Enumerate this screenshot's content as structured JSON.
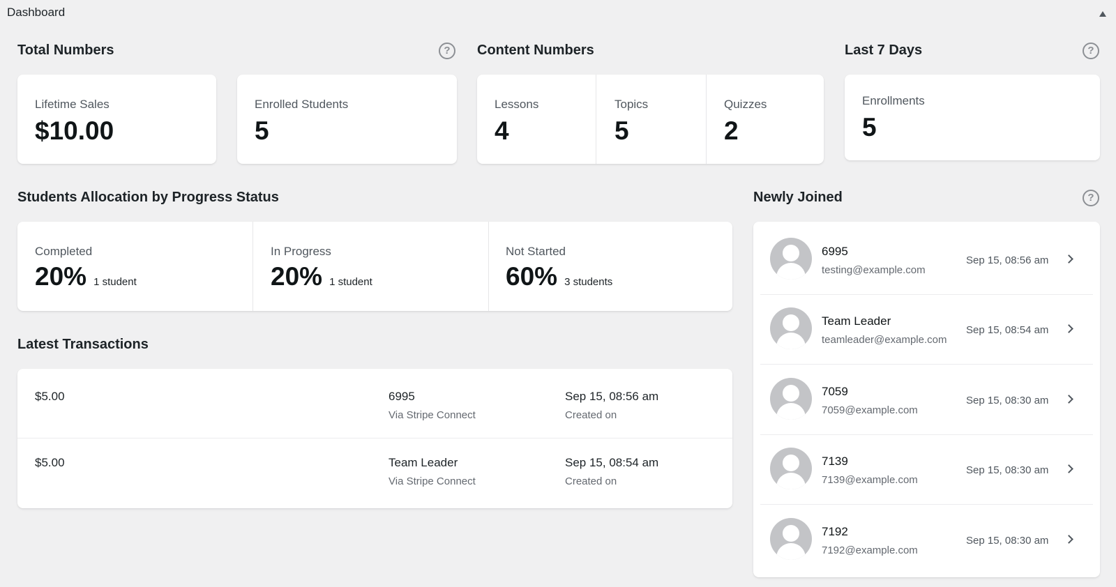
{
  "header": {
    "title": "Dashboard"
  },
  "total_numbers": {
    "title": "Total Numbers",
    "lifetime_sales": {
      "label": "Lifetime Sales",
      "value": "$10.00"
    },
    "enrolled_students": {
      "label": "Enrolled Students",
      "value": "5"
    }
  },
  "content_numbers": {
    "title": "Content Numbers",
    "lessons": {
      "label": "Lessons",
      "value": "4"
    },
    "topics": {
      "label": "Topics",
      "value": "5"
    },
    "quizzes": {
      "label": "Quizzes",
      "value": "2"
    }
  },
  "last_7_days": {
    "title": "Last 7 Days",
    "enrollments": {
      "label": "Enrollments",
      "value": "5"
    }
  },
  "progress_status": {
    "title": "Students Allocation by Progress Status",
    "items": [
      {
        "label": "Completed",
        "percent": "20%",
        "note": "1 student"
      },
      {
        "label": "In Progress",
        "percent": "20%",
        "note": "1 student"
      },
      {
        "label": "Not Started",
        "percent": "60%",
        "note": "3 students"
      }
    ]
  },
  "transactions": {
    "title": "Latest Transactions",
    "rows": [
      {
        "amount": "$5.00",
        "name": "6995",
        "method": "Via Stripe Connect",
        "date": "Sep 15, 08:56 am",
        "date_label": "Created on"
      },
      {
        "amount": "$5.00",
        "name": "Team Leader",
        "method": "Via Stripe Connect",
        "date": "Sep 15, 08:54 am",
        "date_label": "Created on"
      }
    ]
  },
  "newly_joined": {
    "title": "Newly Joined",
    "members": [
      {
        "name": "6995",
        "email": "testing@example.com",
        "date": "Sep 15, 08:56 am"
      },
      {
        "name": "Team Leader",
        "email": "teamleader@example.com",
        "date": "Sep 15, 08:54 am"
      },
      {
        "name": "7059",
        "email": "7059@example.com",
        "date": "Sep 15, 08:30 am"
      },
      {
        "name": "7139",
        "email": "7139@example.com",
        "date": "Sep 15, 08:30 am"
      },
      {
        "name": "7192",
        "email": "7192@example.com",
        "date": "Sep 15, 08:30 am"
      }
    ]
  },
  "icons": {
    "help": "?",
    "collapse": "triangle-up",
    "chevron": "chevron-right"
  }
}
